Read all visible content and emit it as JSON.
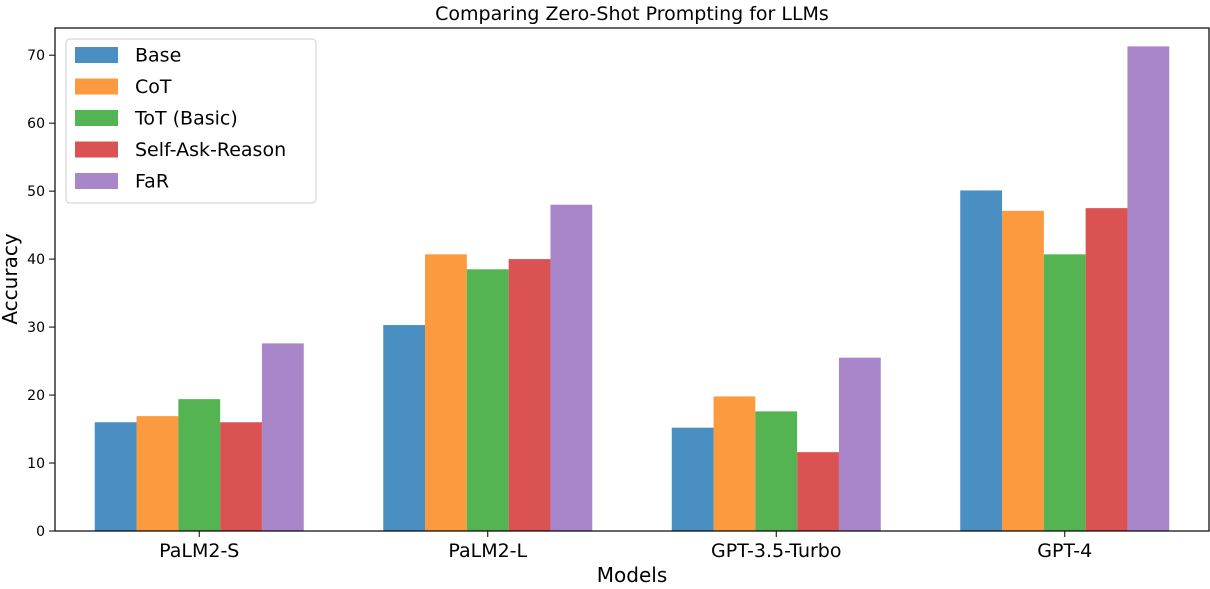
{
  "chart_data": {
    "type": "bar",
    "title": "Comparing Zero-Shot Prompting for LLMs",
    "xlabel": "Models",
    "ylabel": "Accuracy",
    "ylim": [
      0,
      74
    ],
    "yticks": [
      0,
      10,
      20,
      30,
      40,
      50,
      60,
      70
    ],
    "grid": false,
    "legend_position": "top-left",
    "categories": [
      "PaLM2-S",
      "PaLM2-L",
      "GPT-3.5-Turbo",
      "GPT-4"
    ],
    "series": [
      {
        "name": "Base",
        "color": "#4a8fc2",
        "values": [
          16.0,
          30.3,
          15.2,
          50.1
        ]
      },
      {
        "name": "CoT",
        "color": "#fc9a3f",
        "values": [
          16.9,
          40.7,
          19.8,
          47.1
        ]
      },
      {
        "name": "ToT (Basic)",
        "color": "#54b451",
        "values": [
          19.4,
          38.5,
          17.6,
          40.7
        ]
      },
      {
        "name": "Self-Ask-Reason",
        "color": "#db5252",
        "values": [
          16.0,
          40.0,
          11.6,
          47.5
        ]
      },
      {
        "name": "FaR",
        "color": "#a886c9",
        "values": [
          27.6,
          48.0,
          25.5,
          71.3
        ]
      }
    ]
  }
}
